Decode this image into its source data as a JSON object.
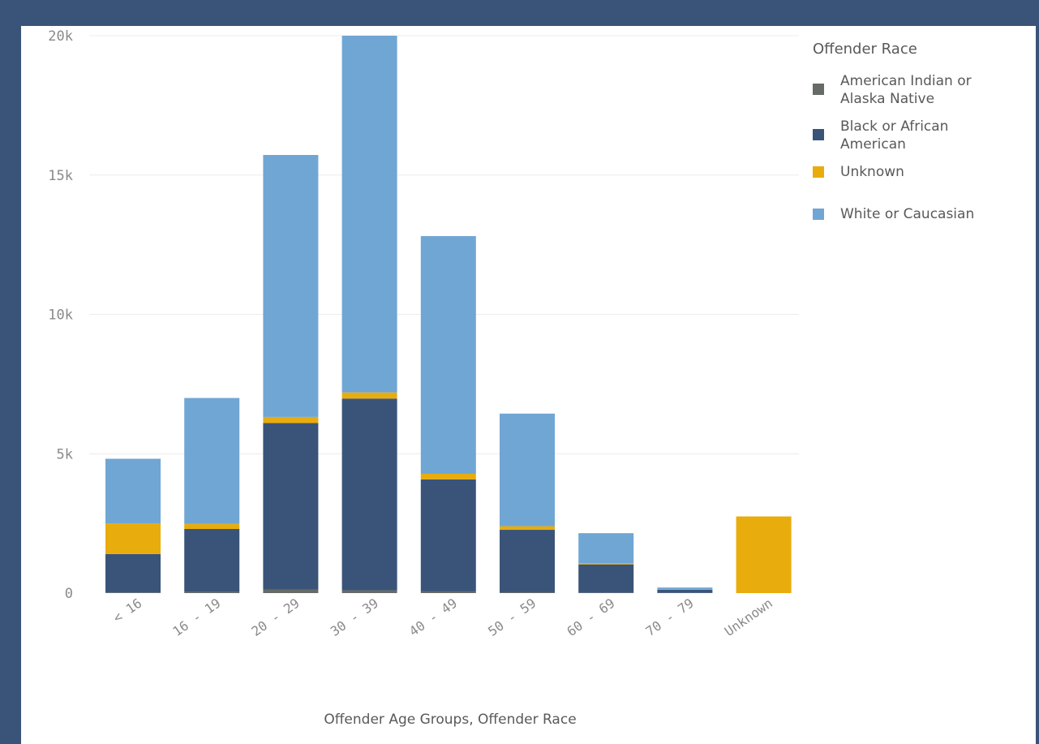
{
  "colors": {
    "frame": "#3a5479",
    "american_indian": "#666b66",
    "black": "#3a5479",
    "unknown": "#e8ac0c",
    "white": "#70a6d4"
  },
  "legend": {
    "title": "Offender Race",
    "items": [
      {
        "label": "American Indian or Alaska Native",
        "color": "#666b66"
      },
      {
        "label": "Black or African American",
        "color": "#3a5479"
      },
      {
        "label": "Unknown",
        "color": "#e8ac0c"
      },
      {
        "label": "White or Caucasian",
        "color": "#70a6d4"
      }
    ]
  },
  "chart_data": {
    "type": "bar",
    "stacked": true,
    "xlabel": "Offender Age Groups, Offender Race",
    "ylabel": "",
    "ylim": [
      0,
      20000
    ],
    "yticks": [
      {
        "value": 0,
        "label": "0"
      },
      {
        "value": 5000,
        "label": "5k"
      },
      {
        "value": 10000,
        "label": "10k"
      },
      {
        "value": 15000,
        "label": "15k"
      },
      {
        "value": 20000,
        "label": "20k"
      }
    ],
    "grid": true,
    "legend_position": "right",
    "categories": [
      "<16",
      "16-19",
      "20-29",
      "30-39",
      "40-49",
      "50-59",
      "60-69",
      "70-79",
      "Unknown"
    ],
    "series": [
      {
        "name": "American Indian or Alaska Native",
        "color": "#666b66",
        "values": [
          20,
          40,
          120,
          100,
          60,
          30,
          10,
          5,
          0
        ]
      },
      {
        "name": "Black or African American",
        "color": "#3a5479",
        "values": [
          1380,
          2260,
          5980,
          6880,
          4020,
          2240,
          1020,
          120,
          0
        ]
      },
      {
        "name": "Unknown",
        "color": "#e8ac0c",
        "values": [
          1100,
          180,
          220,
          220,
          200,
          130,
          40,
          10,
          2750
        ]
      },
      {
        "name": "White or Caucasian",
        "color": "#70a6d4",
        "values": [
          2320,
          4520,
          9400,
          12800,
          8530,
          4040,
          1080,
          65,
          0
        ]
      }
    ]
  }
}
